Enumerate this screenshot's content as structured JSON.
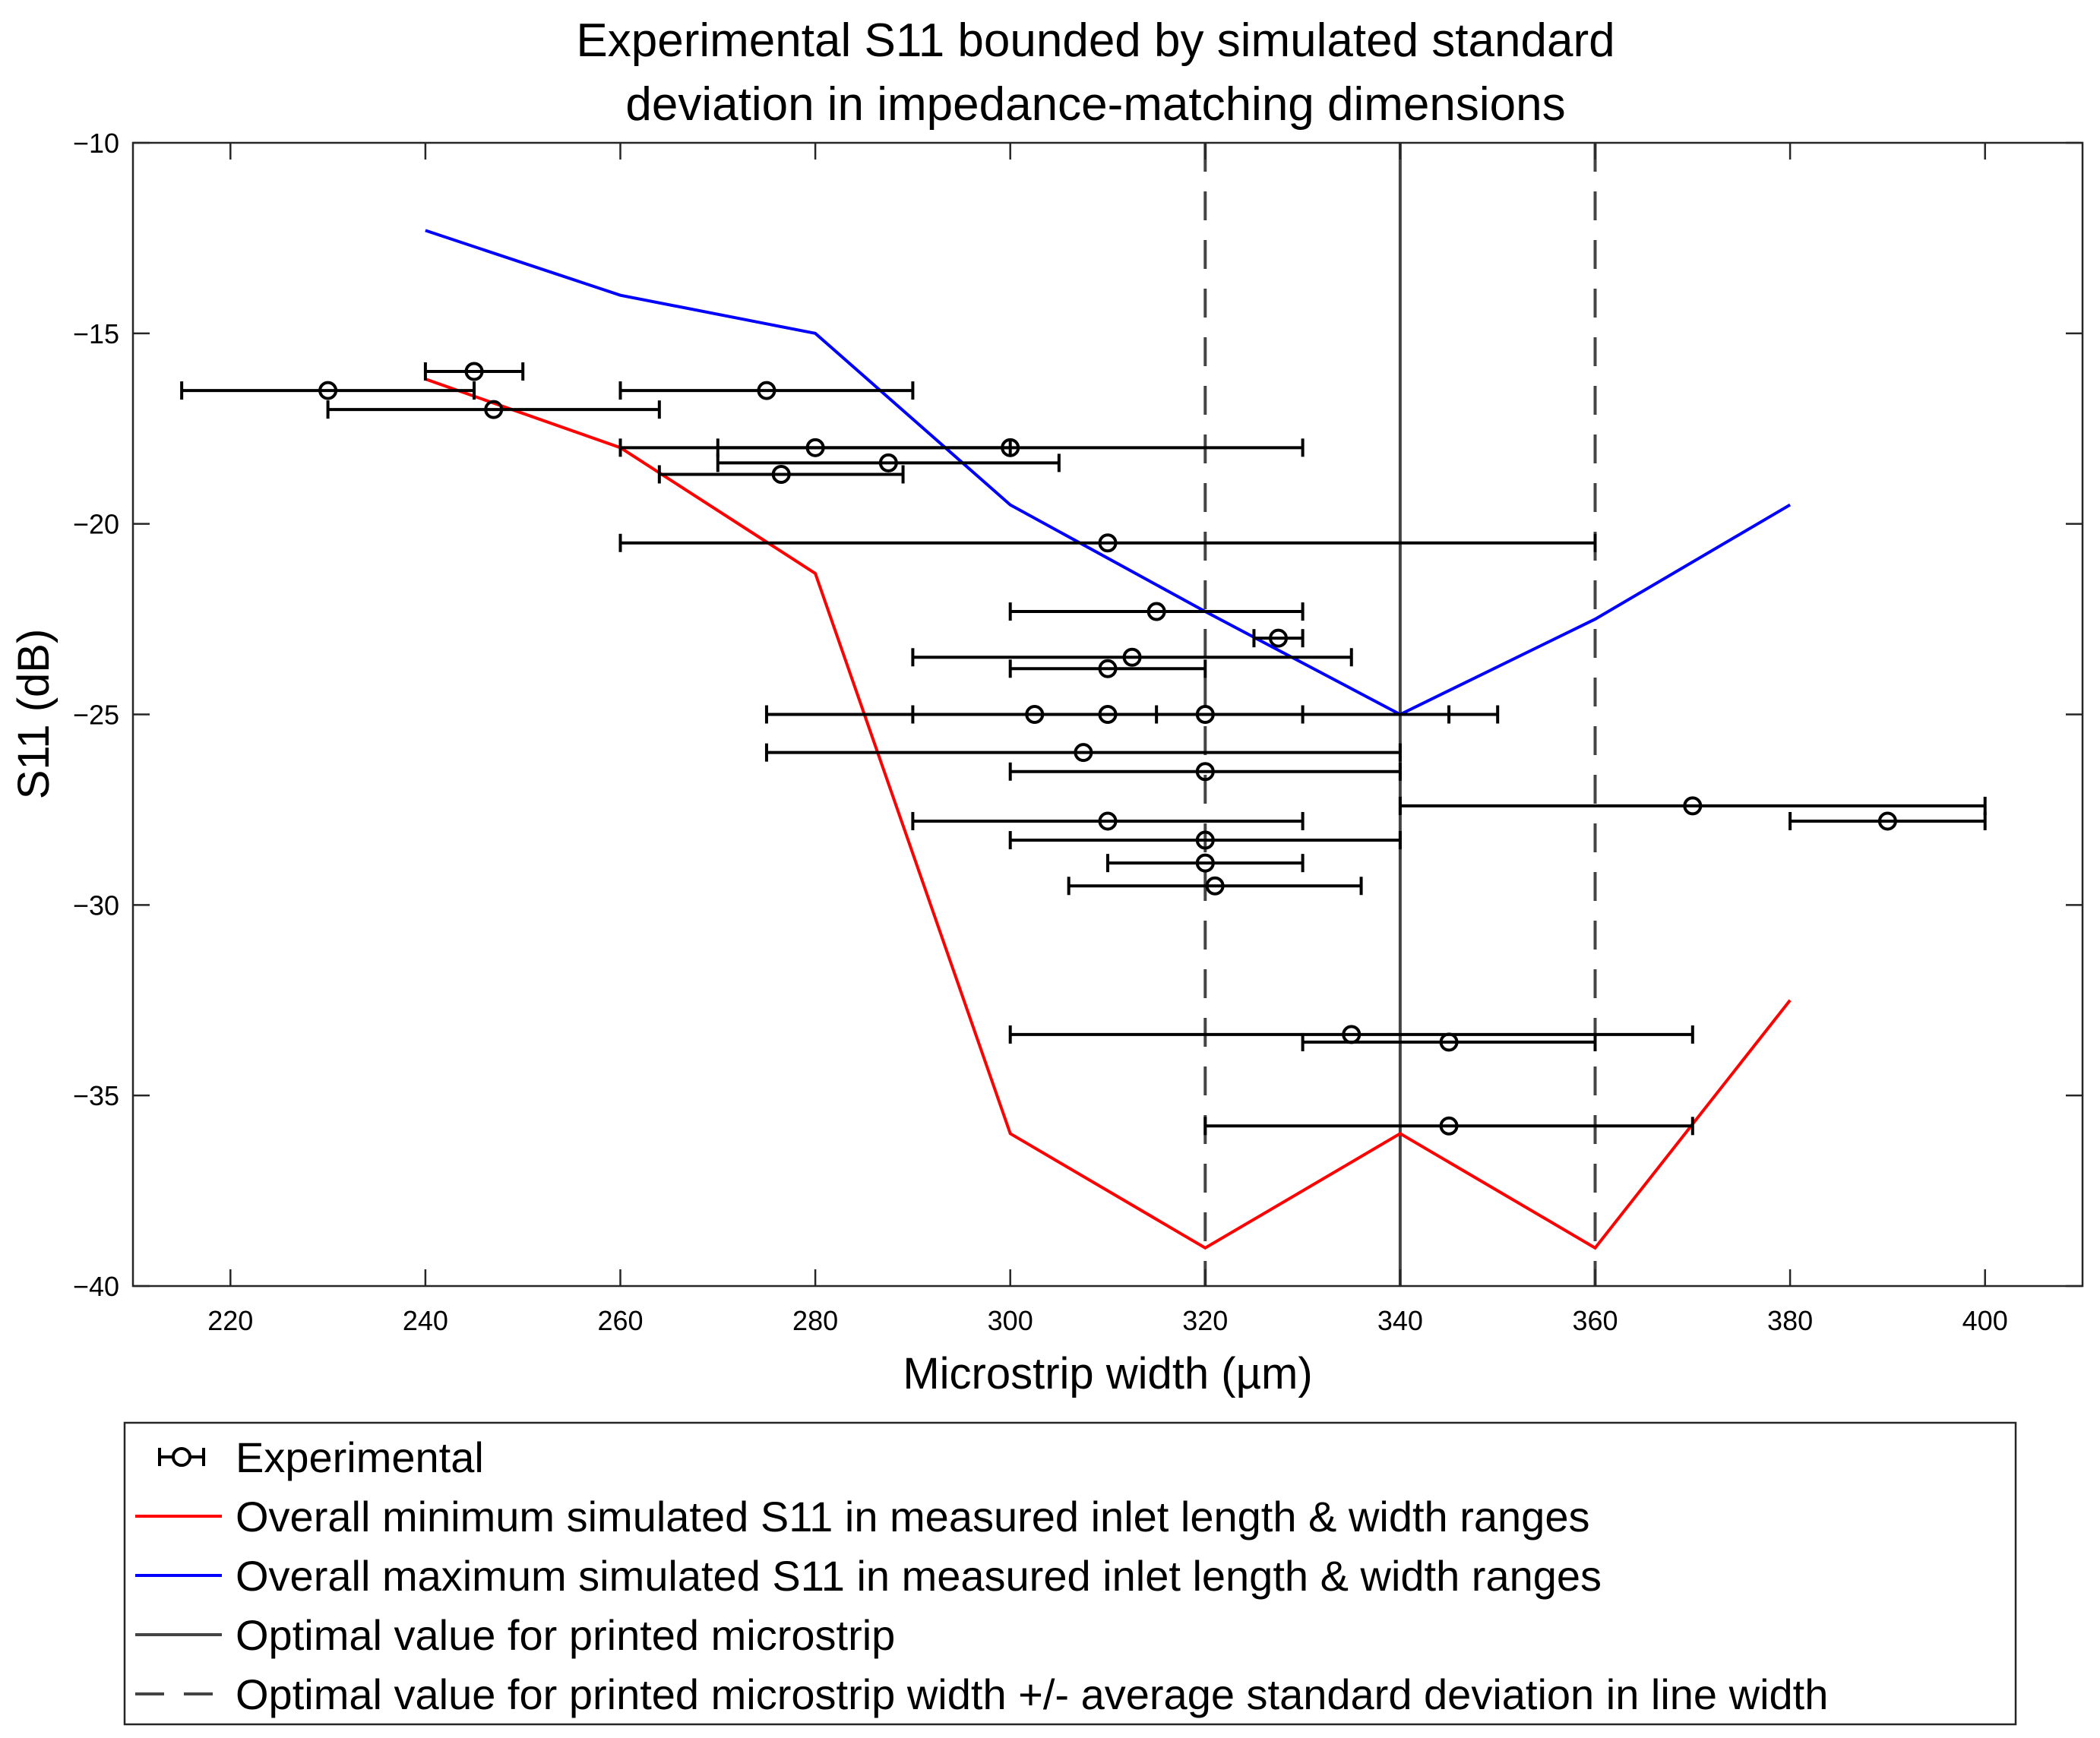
{
  "chart_data": {
    "type": "scatter",
    "title": [
      "Experimental S11 bounded by simulated standard",
      "deviation in impedance-matching dimensions"
    ],
    "xlabel": "Microstrip width (µm)",
    "ylabel": "S11 (dB)",
    "xlim": [
      210,
      410
    ],
    "ylim": [
      -40,
      -10
    ],
    "xticks": [
      220,
      240,
      260,
      280,
      300,
      320,
      340,
      360,
      380,
      400
    ],
    "yticks": [
      -10,
      -15,
      -20,
      -25,
      -30,
      -35,
      -40
    ],
    "xtick_labels": [
      "220",
      "240",
      "260",
      "280",
      "300",
      "320",
      "340",
      "360",
      "380",
      "400"
    ],
    "ytick_labels": [
      "−10",
      "−15",
      "−20",
      "−25",
      "−30",
      "−35",
      "−40"
    ],
    "series": [
      {
        "name": "Experimental",
        "kind": "errorbar",
        "color": "#000000",
        "points": [
          {
            "x": 245,
            "y": -16.0,
            "xmin": 240,
            "xmax": 250
          },
          {
            "x": 230,
            "y": -16.5,
            "xmin": 215,
            "xmax": 245
          },
          {
            "x": 247,
            "y": -17.0,
            "xmin": 230,
            "xmax": 264
          },
          {
            "x": 275,
            "y": -16.5,
            "xmin": 260,
            "xmax": 290
          },
          {
            "x": 280,
            "y": -18.0,
            "xmin": 260,
            "xmax": 300
          },
          {
            "x": 300,
            "y": -18.0,
            "xmin": 270,
            "xmax": 330
          },
          {
            "x": 287.5,
            "y": -18.4,
            "xmin": 270,
            "xmax": 305
          },
          {
            "x": 276.5,
            "y": -18.7,
            "xmin": 264,
            "xmax": 289
          },
          {
            "x": 310,
            "y": -20.5,
            "xmin": 260,
            "xmax": 360
          },
          {
            "x": 315,
            "y": -22.3,
            "xmin": 300,
            "xmax": 330
          },
          {
            "x": 327.5,
            "y": -23.0,
            "xmin": 325,
            "xmax": 330
          },
          {
            "x": 312.5,
            "y": -23.5,
            "xmin": 290,
            "xmax": 335
          },
          {
            "x": 310,
            "y": -23.8,
            "xmin": 300,
            "xmax": 320
          },
          {
            "x": 302.5,
            "y": -25.0,
            "xmin": 275,
            "xmax": 330
          },
          {
            "x": 310,
            "y": -25.0,
            "xmin": 290,
            "xmax": 345
          },
          {
            "x": 320,
            "y": -25.0,
            "xmin": 315,
            "xmax": 350
          },
          {
            "x": 307.5,
            "y": -26.0,
            "xmin": 275,
            "xmax": 340
          },
          {
            "x": 320,
            "y": -26.5,
            "xmin": 300,
            "xmax": 340
          },
          {
            "x": 370,
            "y": -27.4,
            "xmin": 340,
            "xmax": 400
          },
          {
            "x": 390,
            "y": -27.8,
            "xmin": 380,
            "xmax": 400
          },
          {
            "x": 310,
            "y": -27.8,
            "xmin": 290,
            "xmax": 330
          },
          {
            "x": 320,
            "y": -28.3,
            "xmin": 300,
            "xmax": 340
          },
          {
            "x": 320,
            "y": -28.9,
            "xmin": 310,
            "xmax": 330
          },
          {
            "x": 321,
            "y": -29.5,
            "xmin": 306,
            "xmax": 336
          },
          {
            "x": 335,
            "y": -33.4,
            "xmin": 300,
            "xmax": 370
          },
          {
            "x": 345,
            "y": -33.6,
            "xmin": 330,
            "xmax": 360
          },
          {
            "x": 345,
            "y": -35.8,
            "xmin": 320,
            "xmax": 370
          }
        ]
      },
      {
        "name": "Overall minimum simulated S11 in measured inlet length & width ranges",
        "kind": "line",
        "color": "#ff0000",
        "x": [
          240,
          260,
          280,
          300,
          320,
          340,
          360,
          380
        ],
        "y": [
          -16.2,
          -18.0,
          -21.3,
          -36.0,
          -39.0,
          -36.0,
          -39.0,
          -32.5
        ]
      },
      {
        "name": "Overall maximum simulated S11 in measured inlet length & width ranges",
        "kind": "line",
        "color": "#0000ff",
        "x": [
          240,
          260,
          280,
          300,
          320,
          340,
          360,
          380
        ],
        "y": [
          -12.3,
          -14.0,
          -15.0,
          -19.5,
          -22.3,
          -25.0,
          -22.5,
          -19.5
        ]
      },
      {
        "name": "Optimal value for printed microstrip",
        "kind": "vline",
        "color": "#444444",
        "x": 340
      },
      {
        "name": "Optimal value for printed microstrip width +/- average standard deviation in line width",
        "kind": "vline-dashed",
        "color": "#444444",
        "x": [
          320,
          360
        ]
      }
    ],
    "legend": [
      "Experimental",
      "Overall minimum simulated S11 in measured inlet length & width ranges",
      "Overall maximum simulated S11 in measured inlet length & width ranges",
      "Optimal value for printed microstrip",
      "Optimal value for printed microstrip width +/- average standard deviation in line width"
    ],
    "legend_position": "below",
    "grid": false
  }
}
